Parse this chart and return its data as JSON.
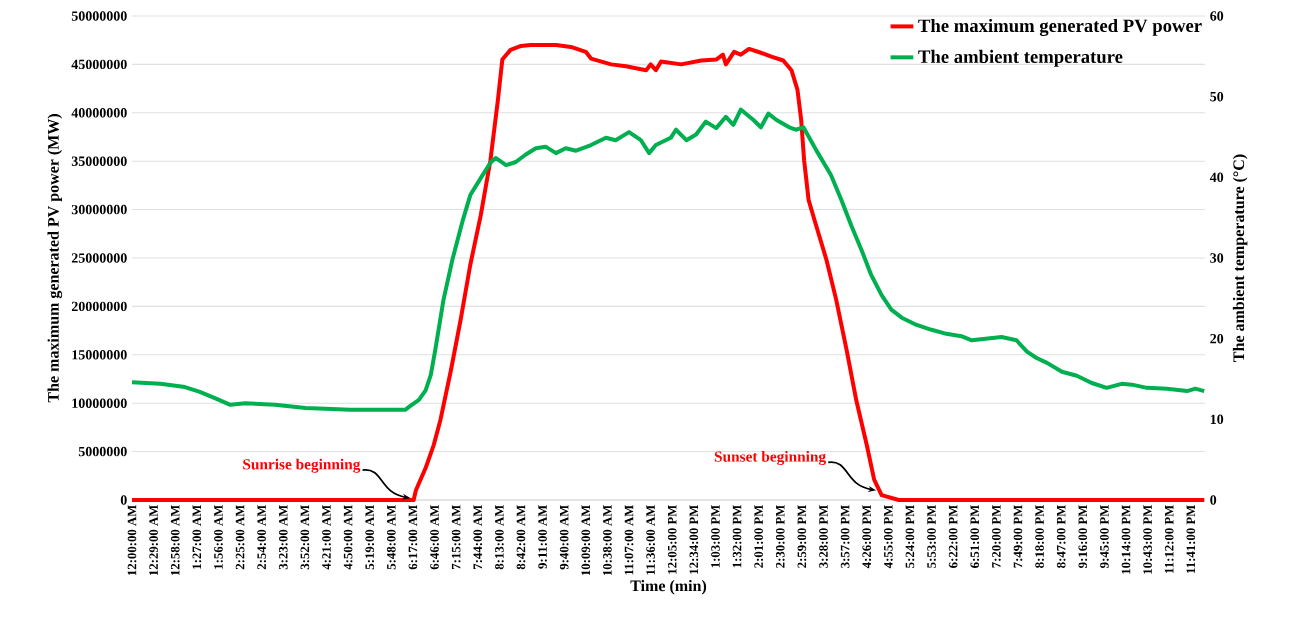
{
  "chart_data": {
    "type": "line",
    "xlabel": "Time (min)",
    "ylabel": "The maximum generated PV power (MW)",
    "y2label": "The ambient temperature (°C)",
    "xlim": [
      0,
      1440
    ],
    "xticks": [
      {
        "value": 0,
        "label": "12:00:00 AM"
      },
      {
        "value": 29,
        "label": "12:29:00 AM"
      },
      {
        "value": 58,
        "label": "12:58:00 AM"
      },
      {
        "value": 87,
        "label": "1:27:00 AM"
      },
      {
        "value": 116,
        "label": "1:56:00 AM"
      },
      {
        "value": 145,
        "label": "2:25:00 AM"
      },
      {
        "value": 174,
        "label": "2:54:00 AM"
      },
      {
        "value": 203,
        "label": "3:23:00 AM"
      },
      {
        "value": 232,
        "label": "3:52:00 AM"
      },
      {
        "value": 261,
        "label": "4:21:00 AM"
      },
      {
        "value": 290,
        "label": "4:50:00 AM"
      },
      {
        "value": 319,
        "label": "5:19:00 AM"
      },
      {
        "value": 348,
        "label": "5:48:00 AM"
      },
      {
        "value": 377,
        "label": "6:17:00 AM"
      },
      {
        "value": 406,
        "label": "6:46:00 AM"
      },
      {
        "value": 435,
        "label": "7:15:00 AM"
      },
      {
        "value": 464,
        "label": "7:44:00 AM"
      },
      {
        "value": 493,
        "label": "8:13:00 AM"
      },
      {
        "value": 522,
        "label": "8:42:00 AM"
      },
      {
        "value": 551,
        "label": "9:11:00 AM"
      },
      {
        "value": 580,
        "label": "9:40:00 AM"
      },
      {
        "value": 609,
        "label": "10:09:00 AM"
      },
      {
        "value": 638,
        "label": "10:38:00 AM"
      },
      {
        "value": 667,
        "label": "11:07:00 AM"
      },
      {
        "value": 696,
        "label": "11:36:00 AM"
      },
      {
        "value": 725,
        "label": "12:05:00 PM"
      },
      {
        "value": 754,
        "label": "12:34:00 PM"
      },
      {
        "value": 783,
        "label": "1:03:00 PM"
      },
      {
        "value": 812,
        "label": "1:32:00 PM"
      },
      {
        "value": 841,
        "label": "2:01:00 PM"
      },
      {
        "value": 870,
        "label": "2:30:00 PM"
      },
      {
        "value": 899,
        "label": "2:59:00 PM"
      },
      {
        "value": 928,
        "label": "3:28:00 PM"
      },
      {
        "value": 957,
        "label": "3:57:00 PM"
      },
      {
        "value": 986,
        "label": "4:26:00 PM"
      },
      {
        "value": 1015,
        "label": "4:55:00 PM"
      },
      {
        "value": 1044,
        "label": "5:24:00 PM"
      },
      {
        "value": 1073,
        "label": "5:53:00 PM"
      },
      {
        "value": 1102,
        "label": "6:22:00 PM"
      },
      {
        "value": 1131,
        "label": "6:51:00 PM"
      },
      {
        "value": 1160,
        "label": "7:20:00 PM"
      },
      {
        "value": 1189,
        "label": "7:49:00 PM"
      },
      {
        "value": 1218,
        "label": "8:18:00 PM"
      },
      {
        "value": 1247,
        "label": "8:47:00 PM"
      },
      {
        "value": 1276,
        "label": "9:16:00 PM"
      },
      {
        "value": 1305,
        "label": "9:45:00 PM"
      },
      {
        "value": 1334,
        "label": "10:14:00 PM"
      },
      {
        "value": 1363,
        "label": "10:43:00 PM"
      },
      {
        "value": 1392,
        "label": "11:12:00 PM"
      },
      {
        "value": 1421,
        "label": "11:41:00 PM"
      }
    ],
    "ylim": [
      0,
      50000000
    ],
    "yticks": [
      0,
      5000000,
      10000000,
      15000000,
      20000000,
      25000000,
      30000000,
      35000000,
      40000000,
      45000000,
      50000000
    ],
    "y2lim": [
      0,
      60
    ],
    "y2ticks": [
      0,
      10,
      20,
      30,
      40,
      50,
      60
    ],
    "grid": "y",
    "legend": "top right",
    "series": [
      {
        "name": "The maximum generated PV power",
        "color": "#ff0000",
        "x": [
          0,
          378,
          381,
          394,
          405,
          414,
          428,
          441,
          454,
          468,
          481,
          491,
          497,
          508,
          522,
          535,
          569,
          589,
          609,
          616,
          643,
          663,
          683,
          690,
          696,
          703,
          710,
          737,
          764,
          784,
          793,
          797,
          808,
          817,
          828,
          844,
          858,
          874,
          885,
          893,
          898,
          902,
          908,
          916,
          932,
          945,
          959,
          972,
          986,
          996,
          1006,
          1029,
          1439
        ],
        "values": [
          0,
          0,
          1000000,
          3300000,
          5700000,
          8300000,
          13400000,
          18600000,
          24300000,
          29400000,
          35100000,
          41300000,
          45500000,
          46500000,
          46900000,
          47000000,
          47000000,
          46800000,
          46300000,
          45600000,
          45000000,
          44800000,
          44500000,
          44400000,
          45000000,
          44400000,
          45300000,
          45000000,
          45400000,
          45500000,
          46000000,
          45000000,
          46300000,
          46000000,
          46600000,
          46200000,
          45800000,
          45400000,
          44400000,
          42400000,
          39300000,
          35100000,
          31000000,
          28900000,
          24800000,
          20700000,
          15500000,
          10300000,
          5700000,
          2100000,
          500000,
          0,
          0
        ]
      },
      {
        "name": "The ambient temperature",
        "color": "#00b050",
        "axis": "y2",
        "x": [
          0,
          38,
          71,
          91,
          112,
          132,
          152,
          192,
          233,
          293,
          354,
          367,
          374,
          385,
          394,
          401,
          407,
          418,
          430,
          444,
          454,
          468,
          481,
          488,
          502,
          515,
          528,
          542,
          555,
          569,
          582,
          596,
          616,
          636,
          649,
          667,
          683,
          694,
          703,
          723,
          730,
          744,
          757,
          770,
          784,
          797,
          807,
          817,
          834,
          844,
          854,
          865,
          882,
          891,
          901,
          912,
          918,
          938,
          952,
          965,
          979,
          992,
          1006,
          1019,
          1033,
          1053,
          1073,
          1093,
          1113,
          1127,
          1167,
          1187,
          1201,
          1214,
          1228,
          1248,
          1268,
          1288,
          1308,
          1328,
          1342,
          1362,
          1389,
          1416,
          1427,
          1439
        ],
        "values": [
          14.6,
          14.4,
          14.0,
          13.4,
          12.6,
          11.8,
          12.0,
          11.8,
          11.4,
          11.2,
          11.2,
          11.2,
          11.7,
          12.4,
          13.6,
          15.5,
          18.6,
          24.8,
          29.8,
          34.7,
          37.8,
          39.9,
          41.8,
          42.4,
          41.5,
          41.9,
          42.8,
          43.6,
          43.8,
          43.0,
          43.6,
          43.3,
          44.0,
          44.9,
          44.6,
          45.6,
          44.6,
          43.0,
          44.0,
          44.9,
          45.9,
          44.6,
          45.3,
          46.9,
          46.1,
          47.5,
          46.5,
          48.4,
          47.1,
          46.2,
          47.9,
          47.1,
          46.2,
          45.9,
          46.2,
          44.4,
          43.4,
          40.3,
          37.2,
          34.1,
          31.0,
          27.9,
          25.4,
          23.6,
          22.6,
          21.7,
          21.1,
          20.6,
          20.3,
          19.8,
          20.2,
          19.8,
          18.4,
          17.6,
          17.0,
          15.9,
          15.4,
          14.5,
          13.9,
          14.4,
          14.3,
          13.9,
          13.8,
          13.5,
          13.8,
          13.5
        ]
      }
    ],
    "annotations": [
      {
        "text": "Sunrise beginning",
        "x": 378,
        "y": 0
      },
      {
        "text": "Sunset beginning",
        "x": 1003,
        "y": 800000
      }
    ]
  }
}
